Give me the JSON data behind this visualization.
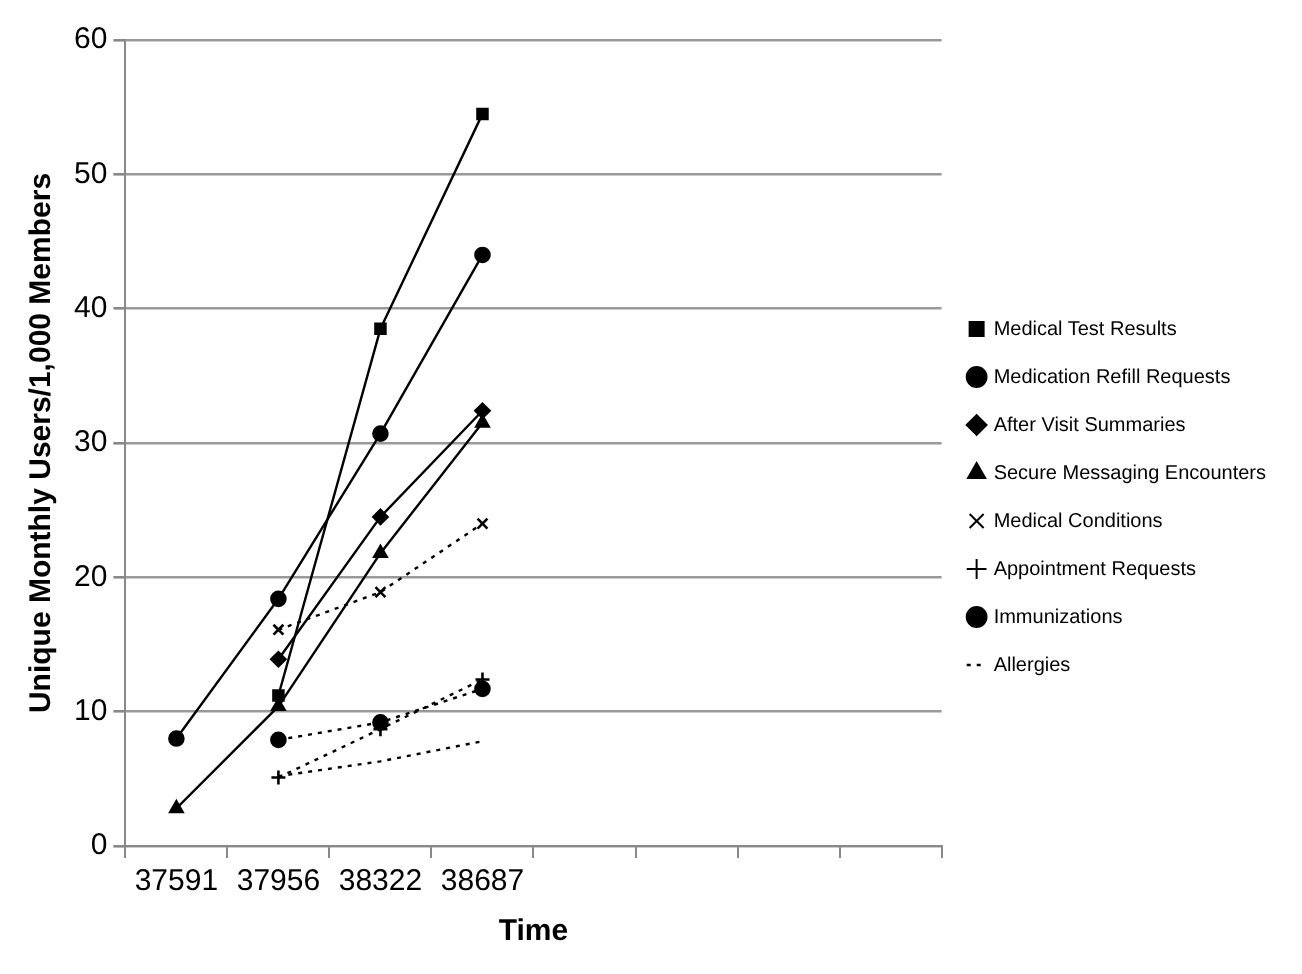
{
  "chart_data": {
    "type": "line",
    "xlabel": "Time",
    "ylabel": "Unique Monthly Users/1,000 Members",
    "categories": [
      "37591",
      "37956",
      "38322",
      "38687",
      null,
      null,
      null,
      null
    ],
    "ylim": [
      0,
      60
    ],
    "yticks": [
      0,
      10,
      20,
      30,
      40,
      50,
      60
    ],
    "grid": "y",
    "legend": "right",
    "series": [
      {
        "name": "Medical Test Results",
        "color": "#000000",
        "marker": "square",
        "line_style": "solid",
        "values": [
          null,
          11.2,
          38.5,
          54.5,
          null,
          null,
          null,
          null
        ]
      },
      {
        "name": "Medication Refill Requests",
        "color": "#000000",
        "marker": "circle",
        "line_style": "solid",
        "values": [
          8.0,
          18.4,
          30.7,
          44.0,
          null,
          null,
          null,
          null
        ]
      },
      {
        "name": "After Visit Summaries",
        "color": "#000000",
        "marker": "diamond",
        "line_style": "solid",
        "values": [
          null,
          13.9,
          24.5,
          32.4,
          null,
          null,
          null,
          null
        ]
      },
      {
        "name": "Secure Messaging Encounters",
        "color": "#000000",
        "marker": "triangle",
        "line_style": "solid",
        "values": [
          2.8,
          10.4,
          21.8,
          31.5,
          null,
          null,
          null,
          null
        ]
      },
      {
        "name": "Medical Conditions",
        "color": "#000000",
        "marker": "x",
        "line_style": "dotted",
        "values": [
          null,
          16.1,
          18.9,
          24.0,
          null,
          null,
          null,
          null
        ]
      },
      {
        "name": "Appointment Requests",
        "color": "#000000",
        "marker": "cross",
        "line_style": "dotted",
        "values": [
          null,
          5.1,
          8.7,
          12.4,
          null,
          null,
          null,
          null
        ]
      },
      {
        "name": "Immunizations",
        "color": "#000000",
        "marker": "circle",
        "line_style": "dotted",
        "values": [
          null,
          7.9,
          9.2,
          11.7,
          null,
          null,
          null,
          null
        ]
      },
      {
        "name": "Allergies",
        "color": "#000000",
        "marker": "none",
        "line_style": "dotted",
        "values": [
          null,
          5.2,
          6.3,
          7.8,
          null,
          null,
          null,
          null
        ]
      }
    ]
  }
}
